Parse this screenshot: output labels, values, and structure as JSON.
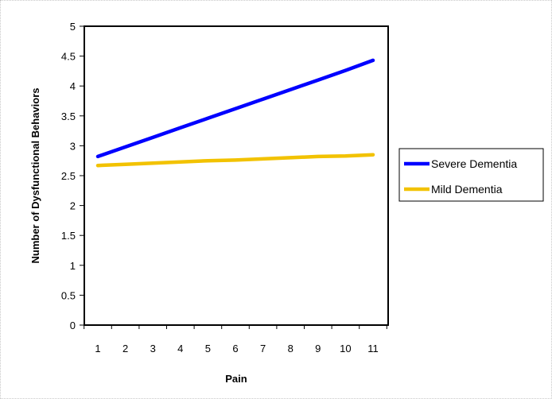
{
  "chart_data": {
    "type": "line",
    "xlabel": "Pain",
    "ylabel": "Number of Dysfunctional Behaviors",
    "x": [
      1,
      2,
      3,
      4,
      5,
      6,
      7,
      8,
      9,
      10,
      11
    ],
    "x_tick_labels": [
      "1",
      "2",
      "3",
      "4",
      "5",
      "6",
      "7",
      "8",
      "9",
      "10",
      "11"
    ],
    "y_tick_labels": [
      "0",
      "0.5",
      "1",
      "1.5",
      "2",
      "2.5",
      "3",
      "3.5",
      "4",
      "4.5",
      "5"
    ],
    "ylim": [
      0,
      5
    ],
    "y_ticks": [
      0,
      0.5,
      1,
      1.5,
      2,
      2.5,
      3,
      3.5,
      4,
      4.5,
      5
    ],
    "grid": false,
    "legend_position": "right",
    "series": [
      {
        "name": "Severe Dementia",
        "color": "#0000ff",
        "values": [
          2.82,
          2.98,
          3.14,
          3.3,
          3.46,
          3.62,
          3.78,
          3.94,
          4.1,
          4.26,
          4.43
        ]
      },
      {
        "name": "Mild Dementia",
        "color": "#f2c200",
        "values": [
          2.67,
          2.69,
          2.71,
          2.73,
          2.75,
          2.76,
          2.78,
          2.8,
          2.82,
          2.83,
          2.85
        ]
      }
    ]
  }
}
